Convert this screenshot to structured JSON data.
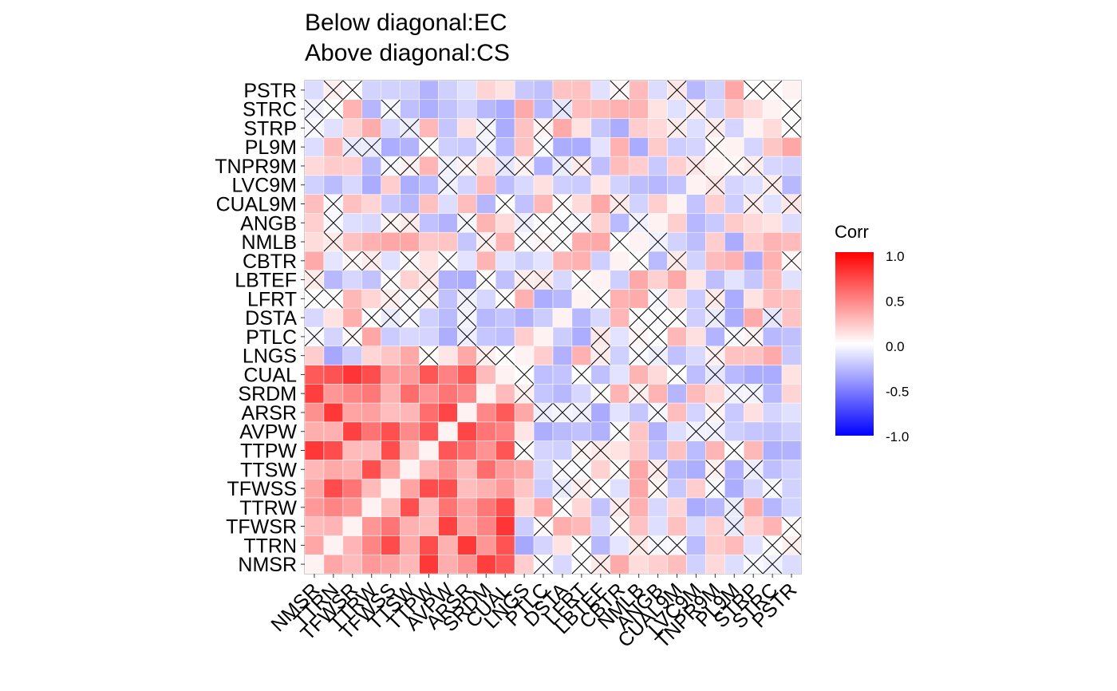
{
  "chart_data": {
    "type": "heatmap",
    "title_lines": [
      "Below diagonal:EC",
      "Above diagonal:CS"
    ],
    "variables": [
      "NMSR",
      "TTRN",
      "TFWSR",
      "TTRW",
      "TFWSS",
      "TTSW",
      "TTPW",
      "AVPW",
      "ARSR",
      "SRDM",
      "CUAL",
      "LNGS",
      "PTLC",
      "DSTA",
      "LFRT",
      "LBTEF",
      "CBTR",
      "NMLB",
      "ANGB",
      "CUAL9M",
      "LVC9M",
      "TNPR9M",
      "PL9M",
      "STRP",
      "STRC",
      "PSTR"
    ],
    "legend": {
      "title": "Corr",
      "ticks": [
        "1.0",
        "0.5",
        "0.0",
        "-0.5",
        "-1.0"
      ],
      "tick_values": [
        1.0,
        0.5,
        0.0,
        -0.5,
        -1.0
      ],
      "range": [
        -1,
        1
      ],
      "colors": {
        "low": "#0000ff",
        "mid": "#ffffff",
        "high": "#ff0000"
      }
    },
    "insignificant_marker": "cross",
    "cell_label_note": "values shown as overlapping unreadable text in original"
  }
}
